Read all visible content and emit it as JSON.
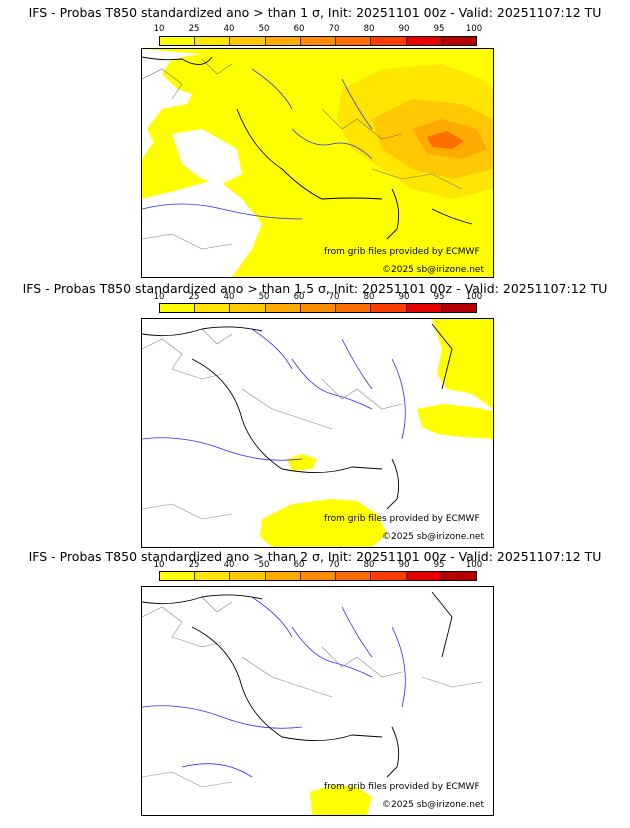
{
  "legend": {
    "levels": [
      "10",
      "25",
      "40",
      "50",
      "60",
      "70",
      "80",
      "90",
      "95",
      "100"
    ],
    "colors": [
      "#ffff00",
      "#ffe600",
      "#ffc800",
      "#ffaa00",
      "#ff8c00",
      "#ff6e00",
      "#ff3c00",
      "#e60000",
      "#b40000",
      "#820000",
      "#500000"
    ]
  },
  "panels": [
    {
      "title": "IFS - Probas T850  standardized ano > than 1 σ, Init: 20251101 00z - Valid: 20251107:12 TU",
      "credit_source": "from grib files provided by ECMWF",
      "credit_copyright": "©2025 sb@irizone.net",
      "coverage": "extensive"
    },
    {
      "title": "IFS - Probas T850  standardized ano > than 1.5 σ, Init: 20251101 00z - Valid: 20251107:12 TU",
      "credit_source": "from grib files provided by ECMWF",
      "credit_copyright": "©2025 sb@irizone.net",
      "coverage": "moderate"
    },
    {
      "title": "IFS - Probas T850  standardized ano > than 2 σ, Init: 20251101 00z - Valid: 20251107:12 TU",
      "credit_source": "from grib files provided by ECMWF",
      "credit_copyright": "©2025 sb@irizone.net",
      "coverage": "minimal"
    }
  ]
}
